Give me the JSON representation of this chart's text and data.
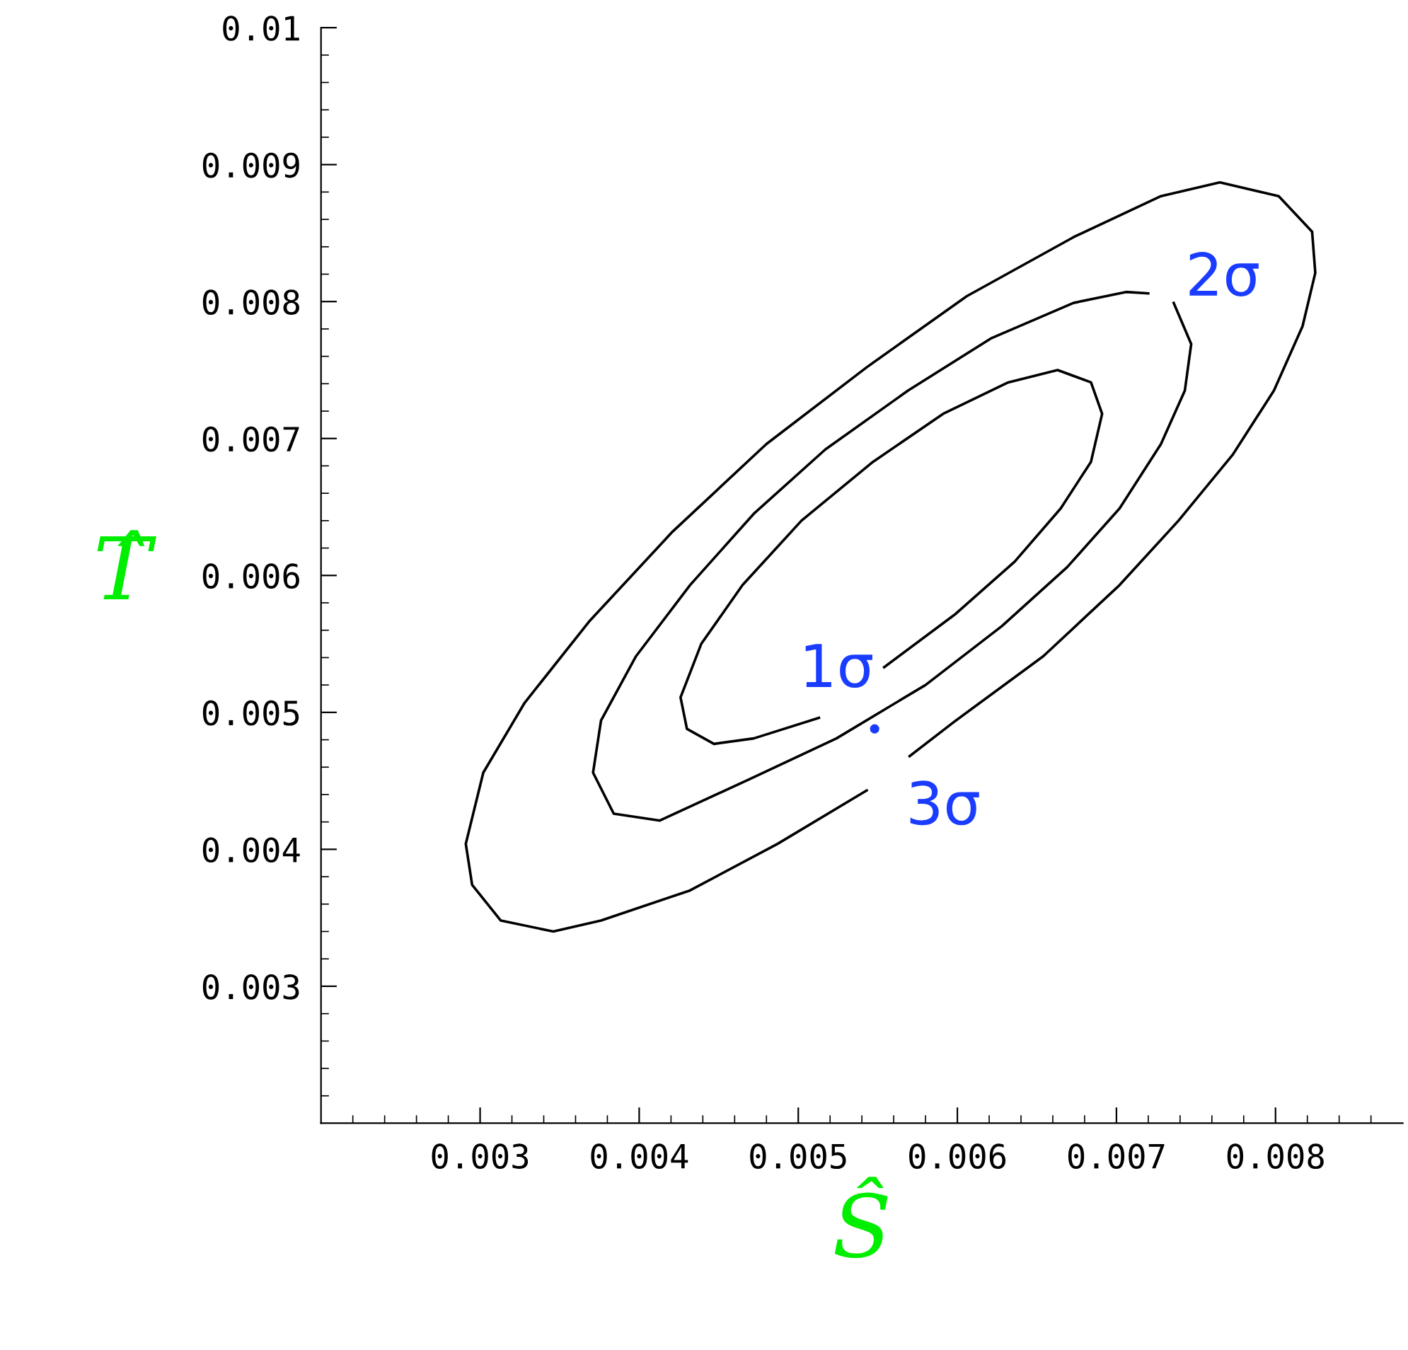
{
  "chart_data": {
    "type": "line",
    "xlabel": "Ŝ",
    "ylabel": "T̂",
    "xlim": [
      0.002,
      0.0088
    ],
    "ylim": [
      0.002,
      0.01
    ],
    "xticks": [
      0.003,
      0.004,
      0.005,
      0.006,
      0.007,
      0.008,
      {
        "value": 0.0022,
        "label": null
      },
      {
        "value": 0.0024,
        "label": null
      },
      {
        "value": 0.0026,
        "label": null
      },
      {
        "value": 0.0028,
        "label": null
      },
      {
        "value": 0.0032,
        "label": null
      },
      {
        "value": 0.0034,
        "label": null
      },
      {
        "value": 0.0036,
        "label": null
      },
      {
        "value": 0.0038,
        "label": null
      },
      {
        "value": 0.0042,
        "label": null
      },
      {
        "value": 0.0044,
        "label": null
      },
      {
        "value": 0.0046,
        "label": null
      },
      {
        "value": 0.0048,
        "label": null
      },
      {
        "value": 0.0052,
        "label": null
      },
      {
        "value": 0.0054,
        "label": null
      },
      {
        "value": 0.0056,
        "label": null
      },
      {
        "value": 0.0058,
        "label": null
      },
      {
        "value": 0.0062,
        "label": null
      },
      {
        "value": 0.0064,
        "label": null
      },
      {
        "value": 0.0066,
        "label": null
      },
      {
        "value": 0.0068,
        "label": null
      },
      {
        "value": 0.0072,
        "label": null
      },
      {
        "value": 0.0074,
        "label": null
      },
      {
        "value": 0.0076,
        "label": null
      },
      {
        "value": 0.0078,
        "label": null
      },
      {
        "value": 0.0082,
        "label": null
      },
      {
        "value": 0.0084,
        "label": null
      },
      {
        "value": 0.0086,
        "label": null
      }
    ],
    "yticks": [
      0.003,
      0.004,
      0.005,
      0.006,
      0.007,
      0.008,
      0.009,
      0.01,
      {
        "value": 0.0022,
        "label": null
      },
      {
        "value": 0.0024,
        "label": null
      },
      {
        "value": 0.0026,
        "label": null
      },
      {
        "value": 0.0028,
        "label": null
      },
      {
        "value": 0.0032,
        "label": null
      },
      {
        "value": 0.0034,
        "label": null
      },
      {
        "value": 0.0036,
        "label": null
      },
      {
        "value": 0.0038,
        "label": null
      },
      {
        "value": 0.0042,
        "label": null
      },
      {
        "value": 0.0044,
        "label": null
      },
      {
        "value": 0.0046,
        "label": null
      },
      {
        "value": 0.0048,
        "label": null
      },
      {
        "value": 0.0052,
        "label": null
      },
      {
        "value": 0.0054,
        "label": null
      },
      {
        "value": 0.0056,
        "label": null
      },
      {
        "value": 0.0058,
        "label": null
      },
      {
        "value": 0.0062,
        "label": null
      },
      {
        "value": 0.0064,
        "label": null
      },
      {
        "value": 0.0066,
        "label": null
      },
      {
        "value": 0.0068,
        "label": null
      },
      {
        "value": 0.0072,
        "label": null
      },
      {
        "value": 0.0074,
        "label": null
      },
      {
        "value": 0.0076,
        "label": null
      },
      {
        "value": 0.0078,
        "label": null
      },
      {
        "value": 0.0082,
        "label": null
      },
      {
        "value": 0.0084,
        "label": null
      },
      {
        "value": 0.0086,
        "label": null
      },
      {
        "value": 0.0088,
        "label": null
      },
      {
        "value": 0.0092,
        "label": null
      },
      {
        "value": 0.0094,
        "label": null
      },
      {
        "value": 0.0096,
        "label": null
      },
      {
        "value": 0.0098,
        "label": null
      }
    ],
    "grid": false,
    "legend": false,
    "marker": "none",
    "line_style": "solid",
    "series": [
      {
        "color": "#000000",
        "x": [
          0.0057,
          0.00599,
          0.00654,
          0.00702,
          0.00739,
          0.00773,
          0.00799,
          0.00817,
          0.00825,
          0.00823,
          0.00802,
          0.00765,
          0.00728,
          0.00673,
          0.00606,
          0.00543,
          0.0048,
          0.00421,
          0.00369,
          0.00328,
          0.00302,
          0.00291,
          0.00295,
          0.00313,
          0.00346,
          0.00376,
          0.00432,
          0.00487,
          0.00543
        ],
        "values": [
          0.00468,
          0.00494,
          0.00541,
          0.00593,
          0.0064,
          0.00688,
          0.00735,
          0.00782,
          0.00821,
          0.00851,
          0.00877,
          0.00887,
          0.00877,
          0.00847,
          0.00804,
          0.00752,
          0.00696,
          0.00632,
          0.00567,
          0.00507,
          0.00456,
          0.00404,
          0.00374,
          0.00348,
          0.0034,
          0.00348,
          0.0037,
          0.00404,
          0.00443
        ]
      },
      {
        "color": "#000000",
        "x": [
          0.00736,
          0.00747,
          0.00743,
          0.00728,
          0.00702,
          0.00669,
          0.00628,
          0.0058,
          0.00524,
          0.00469,
          0.00413,
          0.00384,
          0.00371,
          0.00376,
          0.00398,
          0.00432,
          0.00472,
          0.00517,
          0.00569,
          0.00621,
          0.00673,
          0.00706,
          0.0072
        ],
        "values": [
          0.00799,
          0.00769,
          0.00735,
          0.00696,
          0.00649,
          0.00606,
          0.00563,
          0.0052,
          0.00481,
          0.00451,
          0.00421,
          0.00426,
          0.00456,
          0.00494,
          0.00541,
          0.00593,
          0.00645,
          0.00692,
          0.00735,
          0.00773,
          0.00799,
          0.00807,
          0.00806
        ]
      },
      {
        "color": "#000000",
        "x": [
          0.00554,
          0.00599,
          0.00636,
          0.00665,
          0.00684,
          0.00691,
          0.00684,
          0.00663,
          0.00632,
          0.00591,
          0.00547,
          0.00502,
          0.00465,
          0.00439,
          0.00426,
          0.0043,
          0.00447,
          0.00472,
          0.00513
        ],
        "values": [
          0.00533,
          0.00572,
          0.0061,
          0.00649,
          0.00683,
          0.00718,
          0.00741,
          0.0075,
          0.00741,
          0.00718,
          0.00683,
          0.0064,
          0.00593,
          0.0055,
          0.00511,
          0.00488,
          0.00477,
          0.00481,
          0.00496
        ]
      },
      {
        "type": "scatter",
        "color": "#1a3cff",
        "marker": "circle",
        "x": [
          0.00548
        ],
        "values": [
          0.00488
        ]
      }
    ],
    "annotations": [
      {
        "text": "1σ",
        "x": 0.00513,
        "y": 0.00496
      },
      {
        "text": "2σ",
        "x": 0.00736,
        "y": 0.00799
      },
      {
        "text": "3σ",
        "x": 0.00543,
        "y": 0.00443
      }
    ]
  }
}
